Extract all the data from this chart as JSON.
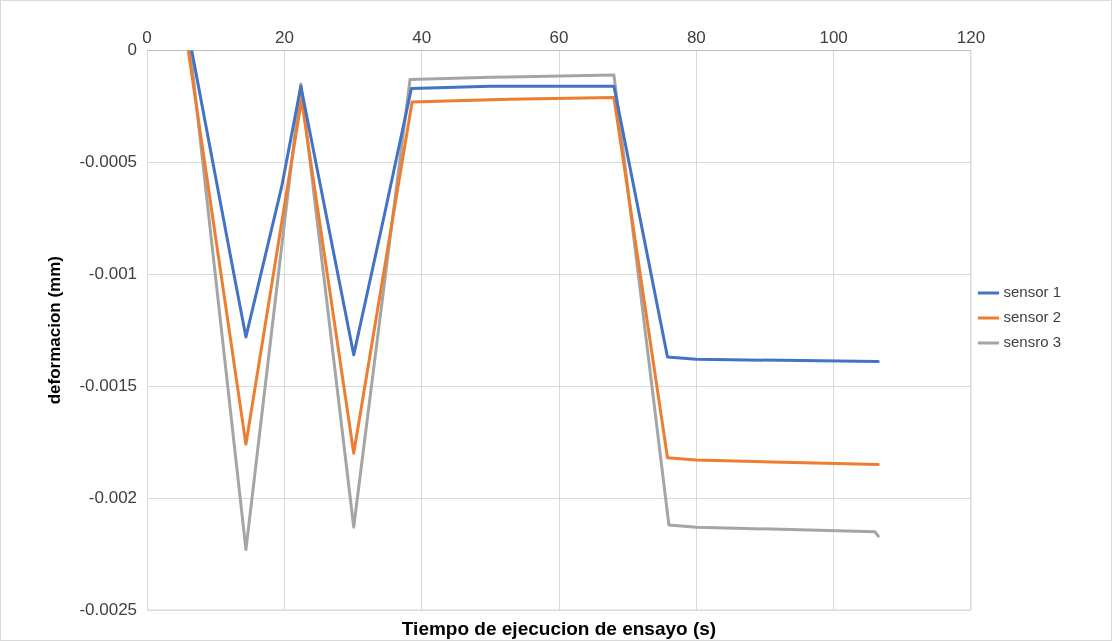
{
  "chart_data": {
    "type": "line",
    "xlabel": "Tiempo de ejecucion de ensayo (s)",
    "ylabel": "deformacion (mm)",
    "xlim": [
      0,
      120
    ],
    "xticks": [
      0,
      20,
      40,
      60,
      80,
      100,
      120
    ],
    "ylim": [
      -0.0025,
      0
    ],
    "yticks": [
      -0.0025,
      -0.002,
      -0.0015,
      -0.001,
      -0.0005,
      0
    ],
    "grid": true,
    "legend": "right",
    "marker": "none",
    "line_style": "solid",
    "series": [
      {
        "name": "sensor 1",
        "color": "#4472c4",
        "x": [
          6.5,
          12.9,
          14.4,
          19.6,
          22.4,
          30.1,
          34.6,
          38.5,
          50,
          68,
          75.8,
          80,
          106.5
        ],
        "values": [
          0,
          -0.00104,
          -0.00128,
          -0.00061,
          -0.00016,
          -0.00136,
          -0.00073,
          -0.00017,
          -0.00016,
          -0.00016,
          -0.00137,
          -0.00138,
          -0.00139
        ]
      },
      {
        "name": "sensor 2",
        "color": "#ed7d31",
        "x": [
          6,
          14.4,
          22.5,
          30.1,
          38.6,
          50,
          68,
          75.8,
          80,
          106.5
        ],
        "values": [
          0,
          -0.00176,
          -0.00022,
          -0.0018,
          -0.00023,
          -0.00022,
          -0.00021,
          -0.00182,
          -0.00183,
          -0.00185
        ]
      },
      {
        "name": "sensro 3",
        "color": "#a5a5a5",
        "x": [
          6.3,
          14.4,
          22.4,
          30.1,
          38.3,
          50,
          68,
          76,
          80,
          106,
          106.5
        ],
        "values": [
          0,
          -0.00223,
          -0.00015,
          -0.00213,
          -0.00013,
          -0.00012,
          -0.00011,
          -0.00212,
          -0.00213,
          -0.00215,
          -0.00217
        ]
      }
    ]
  }
}
